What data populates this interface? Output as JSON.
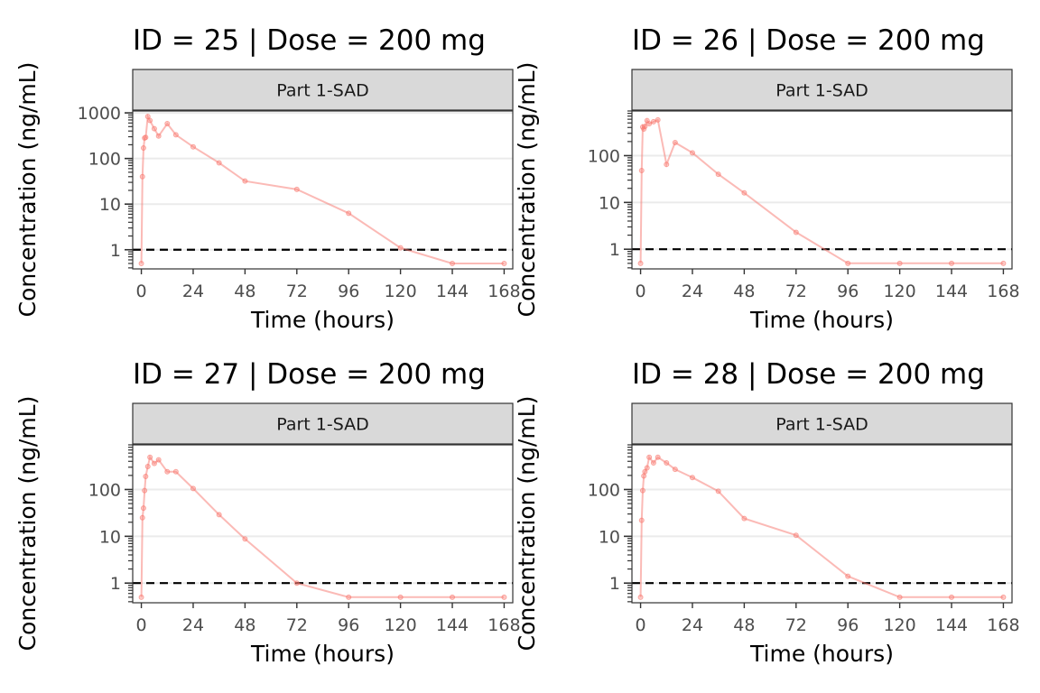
{
  "figure": {
    "panel_titles": [
      "ID = 25 | Dose = 200 mg",
      "ID = 26 | Dose = 200 mg",
      "ID = 27 | Dose = 200 mg",
      "ID = 28 | Dose = 200 mg"
    ]
  },
  "chart_data": [
    {
      "type": "line",
      "title": "ID = 25 | Dose = 200 mg",
      "strip": "Part 1-SAD",
      "xlabel": "Time (hours)",
      "ylabel": "Concentration (ng/mL)",
      "x_ticks": [
        0,
        24,
        48,
        72,
        96,
        120,
        144,
        168
      ],
      "y_ticks": [
        1,
        10,
        100,
        1000
      ],
      "y_scale": "log",
      "xlim": [
        -4,
        172
      ],
      "ylim": [
        0.38,
        1100
      ],
      "hline": 1,
      "color": "#f8766d",
      "grid": "horizontal",
      "series": [
        {
          "x": [
            0,
            0.5,
            1,
            1.5,
            2,
            3,
            4,
            6,
            8,
            12,
            16,
            24,
            36,
            48,
            72,
            96,
            120,
            144,
            168
          ],
          "y": [
            0.5,
            40,
            170,
            280,
            290,
            830,
            680,
            450,
            310,
            580,
            330,
            180,
            80,
            32,
            21,
            6.3,
            1.1,
            0.5,
            0.5
          ]
        }
      ]
    },
    {
      "type": "line",
      "title": "ID = 26 | Dose = 200 mg",
      "strip": "Part 1-SAD",
      "xlabel": "Time (hours)",
      "ylabel": "Concentration (ng/mL)",
      "x_ticks": [
        0,
        24,
        48,
        72,
        96,
        120,
        144,
        168
      ],
      "y_ticks": [
        1,
        10,
        100
      ],
      "y_scale": "log",
      "xlim": [
        -4,
        172
      ],
      "ylim": [
        0.38,
        900
      ],
      "hline": 1,
      "color": "#f8766d",
      "grid": "horizontal",
      "series": [
        {
          "x": [
            0,
            0.5,
            1,
            1.5,
            2,
            3,
            4,
            6,
            8,
            12,
            16,
            24,
            36,
            48,
            72,
            96,
            120,
            144,
            168
          ],
          "y": [
            0.5,
            48,
            410,
            370,
            420,
            560,
            480,
            530,
            580,
            65,
            190,
            115,
            40,
            16,
            2.3,
            0.5,
            0.5,
            0.5,
            0.5
          ]
        }
      ]
    },
    {
      "type": "line",
      "title": "ID = 27 | Dose = 200 mg",
      "strip": "Part 1-SAD",
      "xlabel": "Time (hours)",
      "ylabel": "Concentration (ng/mL)",
      "x_ticks": [
        0,
        24,
        48,
        72,
        96,
        120,
        144,
        168
      ],
      "y_ticks": [
        1,
        10,
        100
      ],
      "y_scale": "log",
      "xlim": [
        -4,
        172
      ],
      "ylim": [
        0.38,
        900
      ],
      "hline": 1,
      "color": "#f8766d",
      "grid": "horizontal",
      "series": [
        {
          "x": [
            0,
            0.5,
            1,
            1.5,
            2,
            3,
            4,
            6,
            8,
            12,
            16,
            24,
            36,
            48,
            72,
            96,
            120,
            144,
            168
          ],
          "y": [
            0.5,
            25,
            40,
            95,
            190,
            310,
            490,
            360,
            430,
            240,
            240,
            105,
            29,
            8.8,
            1.0,
            0.5,
            0.5,
            0.5,
            0.5
          ]
        }
      ]
    },
    {
      "type": "line",
      "title": "ID = 28 | Dose = 200 mg",
      "strip": "Part 1-SAD",
      "xlabel": "Time (hours)",
      "ylabel": "Concentration (ng/mL)",
      "x_ticks": [
        0,
        24,
        48,
        72,
        96,
        120,
        144,
        168
      ],
      "y_ticks": [
        1,
        10,
        100
      ],
      "y_scale": "log",
      "xlim": [
        -4,
        172
      ],
      "ylim": [
        0.38,
        900
      ],
      "hline": 1,
      "color": "#f8766d",
      "grid": "horizontal",
      "series": [
        {
          "x": [
            0,
            0.5,
            1,
            1.5,
            2,
            3,
            4,
            6,
            8,
            12,
            16,
            24,
            36,
            48,
            72,
            96,
            120,
            144,
            168
          ],
          "y": [
            0.5,
            22,
            95,
            195,
            240,
            290,
            490,
            370,
            490,
            370,
            270,
            180,
            92,
            24,
            10.5,
            1.4,
            0.5,
            0.5,
            0.5
          ]
        }
      ]
    }
  ]
}
